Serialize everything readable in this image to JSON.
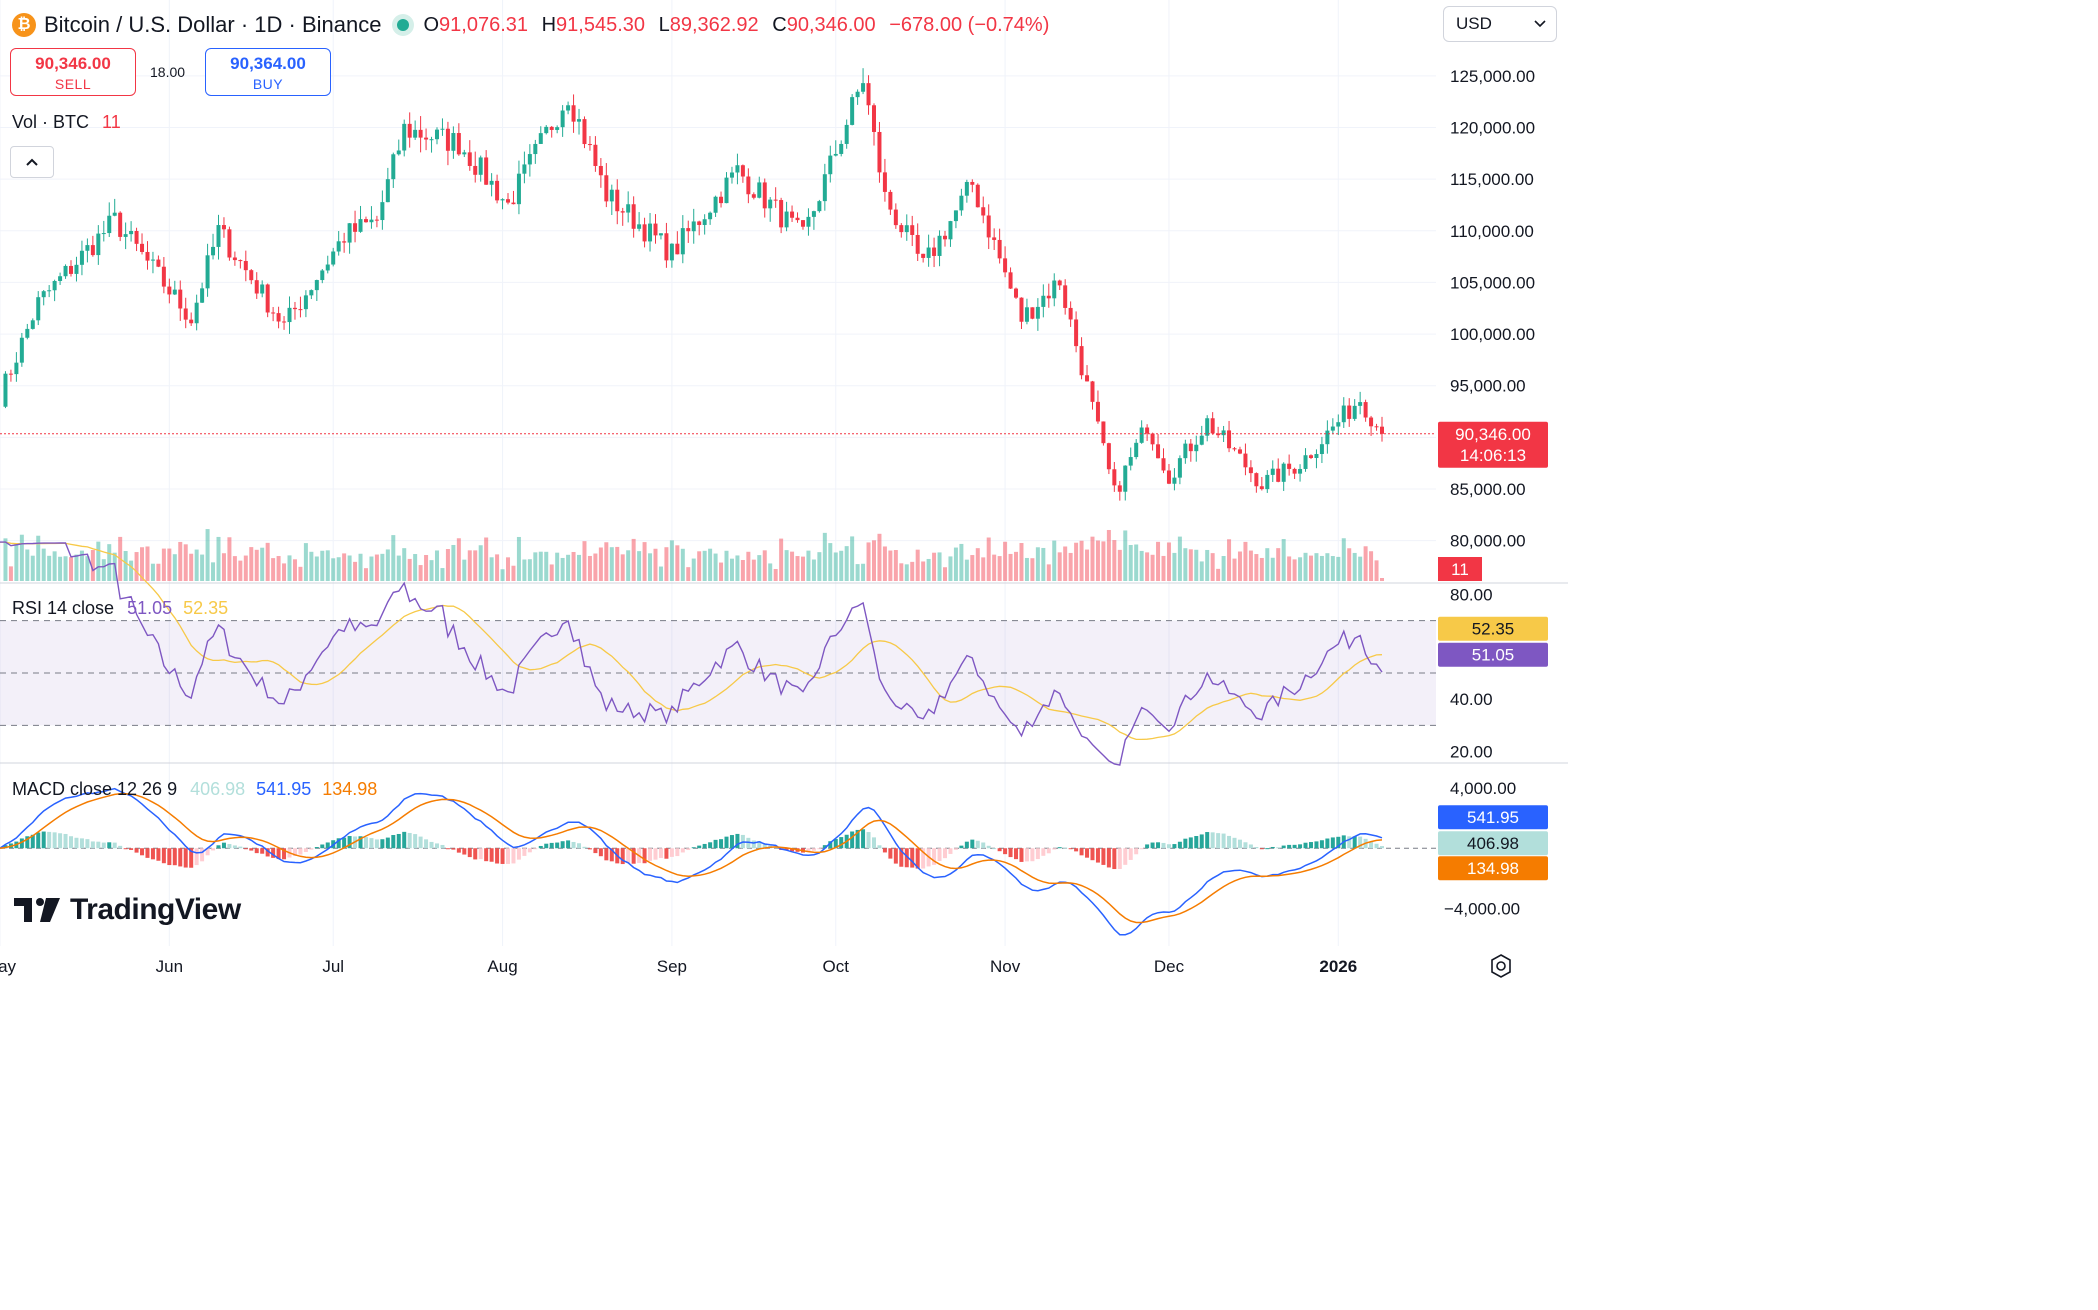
{
  "header": {
    "coin_symbol": "₿",
    "title": "Bitcoin / U.S. Dollar · 1D · Binance",
    "ohlc": [
      {
        "k": "O",
        "v": "91,076.31"
      },
      {
        "k": "H",
        "v": "91,545.30"
      },
      {
        "k": "L",
        "v": "89,362.92"
      },
      {
        "k": "C",
        "v": "90,346.00"
      }
    ],
    "change": "−678.00 (−0.74%)"
  },
  "trade": {
    "sell_price": "90,346.00",
    "sell_label": "SELL",
    "spread": "18.00",
    "buy_price": "90,364.00",
    "buy_label": "BUY"
  },
  "volume_label": {
    "name": "Vol · BTC",
    "value": "11"
  },
  "currency": {
    "value": "USD"
  },
  "logo": {
    "text": "TradingView"
  },
  "colors": {
    "up": "#22ab94",
    "down": "#f23645",
    "rsi": "#7e57c2",
    "rsi_ma": "#f7c948",
    "macd": "#2962ff",
    "signal": "#f57c00",
    "hist_up": "#26a69a",
    "hist_down": "#ef5350"
  },
  "chart_data": [
    {
      "type": "candlestick",
      "title": "Bitcoin / U.S. Dollar · 1D · Binance",
      "ylim": [
        76000,
        127500
      ],
      "yticks": [
        "125,000.00",
        "120,000.00",
        "115,000.00",
        "110,000.00",
        "105,000.00",
        "100,000.00",
        "95,000.00",
        "90,000.00",
        "85,000.00",
        "80,000.00"
      ],
      "xticks": [
        "May",
        "Jun",
        "Jul",
        "Aug",
        "Sep",
        "Oct",
        "Nov",
        "Dec",
        "2026"
      ],
      "last_price": 90346,
      "last_price_label": "90,346.00",
      "countdown": "14:06:13",
      "volume_last": "11",
      "close_anchors": [
        {
          "date": "2025-05-01",
          "close": 94000
        },
        {
          "date": "2025-05-08",
          "close": 103000
        },
        {
          "date": "2025-05-22",
          "close": 111000
        },
        {
          "date": "2025-06-05",
          "close": 101500
        },
        {
          "date": "2025-06-10",
          "close": 110000
        },
        {
          "date": "2025-06-22",
          "close": 100800
        },
        {
          "date": "2025-07-03",
          "close": 109500
        },
        {
          "date": "2025-07-09",
          "close": 111000
        },
        {
          "date": "2025-07-14",
          "close": 119800
        },
        {
          "date": "2025-07-24",
          "close": 118500
        },
        {
          "date": "2025-08-02",
          "close": 112500
        },
        {
          "date": "2025-08-13",
          "close": 123300
        },
        {
          "date": "2025-08-20",
          "close": 113500
        },
        {
          "date": "2025-09-01",
          "close": 107800
        },
        {
          "date": "2025-09-13",
          "close": 115800
        },
        {
          "date": "2025-09-25",
          "close": 109300
        },
        {
          "date": "2025-10-06",
          "close": 124700
        },
        {
          "date": "2025-10-10",
          "close": 113200
        },
        {
          "date": "2025-10-17",
          "close": 106500
        },
        {
          "date": "2025-10-26",
          "close": 114500
        },
        {
          "date": "2025-11-04",
          "close": 101500
        },
        {
          "date": "2025-11-11",
          "close": 105200
        },
        {
          "date": "2025-11-21",
          "close": 84500
        },
        {
          "date": "2025-11-27",
          "close": 91300
        },
        {
          "date": "2025-12-01",
          "close": 86300
        },
        {
          "date": "2025-12-08",
          "close": 91500
        },
        {
          "date": "2025-12-18",
          "close": 85500
        },
        {
          "date": "2025-12-25",
          "close": 87500
        },
        {
          "date": "2026-01-05",
          "close": 93800
        },
        {
          "date": "2026-01-09",
          "close": 90346
        }
      ]
    },
    {
      "type": "line",
      "title": "RSI 14 close",
      "ylim": [
        16,
        84
      ],
      "yticks": [
        "80.00",
        "40.00",
        "20.00"
      ],
      "band": [
        30,
        70
      ],
      "series": [
        {
          "name": "RSI",
          "last": "51.05",
          "color": "#7e57c2"
        },
        {
          "name": "RSI MA",
          "last": "52.35",
          "color": "#f7c948"
        }
      ]
    },
    {
      "type": "line",
      "title": "MACD close 12 26 9",
      "ylim": [
        -6500,
        5600
      ],
      "yticks": [
        "4,000.00",
        "−4,000.00"
      ],
      "series": [
        {
          "name": "Histogram",
          "last": "406.98",
          "color": "#b2dfdb"
        },
        {
          "name": "MACD",
          "last": "541.95",
          "color": "#2962ff"
        },
        {
          "name": "Signal",
          "last": "134.98",
          "color": "#f57c00"
        }
      ]
    }
  ]
}
